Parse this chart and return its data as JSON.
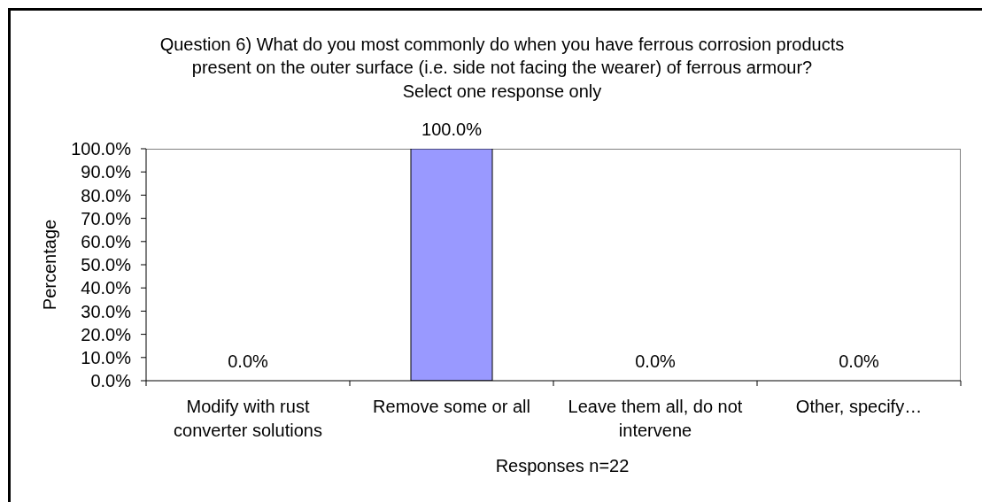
{
  "chart_data": {
    "type": "bar",
    "title": "Question 6) What do you most commonly do when you have ferrous corrosion products present on the outer surface (i.e. side not facing the wearer) of ferrous armour?",
    "subtitle": "Select one response only",
    "xlabel": "Responses n=22",
    "ylabel": "Percentage",
    "categories": [
      "Modify with rust converter solutions",
      "Remove some or all",
      "Leave them all, do not intervene",
      "Other, specify…"
    ],
    "values": [
      0,
      100,
      0,
      0
    ],
    "color": "#9999ff",
    "value_labels": [
      "0.0%",
      "100.0%",
      "0.0%",
      "0.0%"
    ],
    "ylim": [
      0,
      100
    ],
    "yticks": [
      {
        "value": 0,
        "label": "0.0%"
      },
      {
        "value": 10,
        "label": "10.0%"
      },
      {
        "value": 20,
        "label": "20.0%"
      },
      {
        "value": 30,
        "label": "30.0%"
      },
      {
        "value": 40,
        "label": "40.0%"
      },
      {
        "value": 50,
        "label": "50.0%"
      },
      {
        "value": 60,
        "label": "60.0%"
      },
      {
        "value": 70,
        "label": "70.0%"
      },
      {
        "value": 80,
        "label": "80.0%"
      },
      {
        "value": 90,
        "label": "90.0%"
      },
      {
        "value": 100,
        "label": "100.0%"
      }
    ]
  }
}
